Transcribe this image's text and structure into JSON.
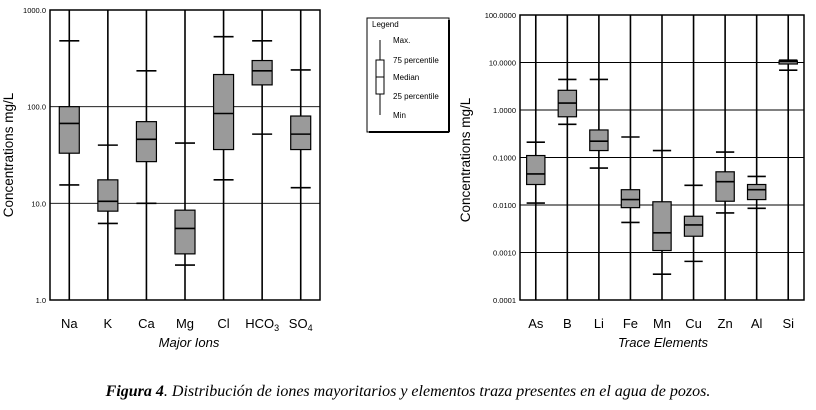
{
  "caption": {
    "label": "Figura 4",
    "text": ". Distribución de iones mayoritarios y elementos traza presentes en el agua de pozos."
  },
  "legend": {
    "title": "Legend",
    "items": [
      "Max.",
      "75 percentile",
      "Median",
      "25 percentile",
      "Min"
    ]
  },
  "colors": {
    "box_fill": "#9a9a9a",
    "axis": "#000000",
    "background": "#ffffff"
  },
  "chart_data": [
    {
      "type": "boxplot",
      "ylabel": "Concentrations  mg/L",
      "xlabel": "Major Ions",
      "yscale": "log",
      "ylim": [
        1,
        1000
      ],
      "yticks": [
        "1.0",
        "10.0",
        "100.0",
        "1000.0"
      ],
      "ytick_values": [
        1,
        10,
        100,
        1000
      ],
      "grid": "horizontal at decades",
      "categories": [
        "Na",
        "K",
        "Ca",
        "Mg",
        "Cl",
        "HCO3",
        "SO4"
      ],
      "category_labels": [
        {
          "base": "Na",
          "sub": ""
        },
        {
          "base": "K",
          "sub": ""
        },
        {
          "base": "Ca",
          "sub": ""
        },
        {
          "base": "Mg",
          "sub": ""
        },
        {
          "base": "Cl",
          "sub": ""
        },
        {
          "base": "HCO",
          "sub": "3"
        },
        {
          "base": "SO",
          "sub": "4"
        }
      ],
      "boxes": [
        {
          "min": 15.5,
          "q1": 33,
          "median": 67,
          "q3": 100,
          "max": 480
        },
        {
          "min": 6.2,
          "q1": 8.3,
          "median": 10.5,
          "q3": 17.5,
          "max": 40
        },
        {
          "min": 10,
          "q1": 27,
          "median": 46,
          "q3": 70,
          "max": 235
        },
        {
          "min": 2.3,
          "q1": 3.0,
          "median": 5.5,
          "q3": 8.5,
          "max": 42
        },
        {
          "min": 17.5,
          "q1": 36,
          "median": 85,
          "q3": 215,
          "max": 530
        },
        {
          "min": 52,
          "q1": 168,
          "median": 235,
          "q3": 300,
          "max": 480
        },
        {
          "min": 14.5,
          "q1": 36,
          "median": 52,
          "q3": 80,
          "max": 240
        }
      ]
    },
    {
      "type": "boxplot",
      "ylabel": "Concentrations  mg/L",
      "xlabel": "Trace Elements",
      "yscale": "log",
      "ylim": [
        0.0001,
        100
      ],
      "yticks": [
        "0.0001",
        "0.0010",
        "0.0100",
        "0.1000",
        "1.0000",
        "10.0000",
        "100.0000"
      ],
      "ytick_values": [
        0.0001,
        0.001,
        0.01,
        0.1,
        1,
        10,
        100
      ],
      "grid": "horizontal at decades",
      "categories": [
        "As",
        "B",
        "Li",
        "Fe",
        "Mn",
        "Cu",
        "Zn",
        "Al",
        "Si"
      ],
      "boxes": [
        {
          "min": 0.011,
          "q1": 0.027,
          "median": 0.045,
          "q3": 0.11,
          "max": 0.21
        },
        {
          "min": 0.5,
          "q1": 0.72,
          "median": 1.4,
          "q3": 2.6,
          "max": 4.4
        },
        {
          "min": 0.06,
          "q1": 0.14,
          "median": 0.22,
          "q3": 0.38,
          "max": 4.4
        },
        {
          "min": 0.0043,
          "q1": 0.0088,
          "median": 0.013,
          "q3": 0.021,
          "max": 0.27
        },
        {
          "min": 0.00035,
          "q1": 0.0011,
          "median": 0.0026,
          "q3": 0.0117,
          "max": 0.14
        },
        {
          "min": 0.00065,
          "q1": 0.0022,
          "median": 0.0038,
          "q3": 0.0058,
          "max": 0.026
        },
        {
          "min": 0.0068,
          "q1": 0.012,
          "median": 0.031,
          "q3": 0.05,
          "max": 0.13
        },
        {
          "min": 0.0085,
          "q1": 0.013,
          "median": 0.021,
          "q3": 0.027,
          "max": 0.04
        },
        {
          "min": 6.9,
          "q1": 9.3,
          "median": 10.5,
          "q3": 10.8,
          "max": 11.2
        }
      ]
    }
  ]
}
